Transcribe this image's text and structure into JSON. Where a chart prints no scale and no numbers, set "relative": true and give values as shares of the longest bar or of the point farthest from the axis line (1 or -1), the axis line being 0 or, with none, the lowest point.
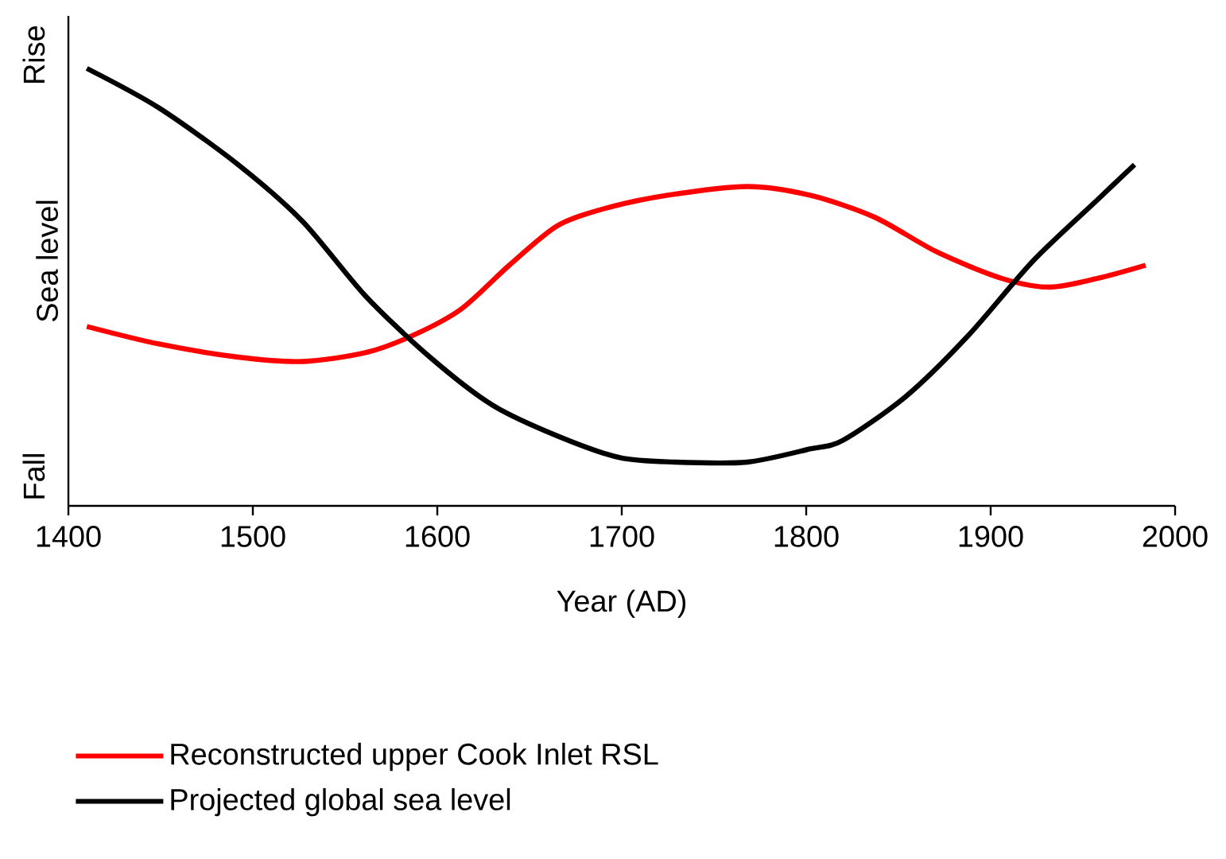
{
  "chart_data": {
    "type": "line",
    "relative": true,
    "xlabel": "Year (AD)",
    "ylabel": "Sea level",
    "annotations": [
      "Rise",
      "Fall"
    ],
    "xlim": [
      1400,
      2000
    ],
    "xticks": [
      1400,
      1500,
      1600,
      1700,
      1800,
      1900,
      2000
    ],
    "legend": "bottom",
    "grid": false,
    "marker": "none",
    "line_style": "solid",
    "series": [
      {
        "name": "Reconstructed upper Cook Inlet RSL",
        "color": "#ff0000",
        "x": [
          1410,
          1449,
          1492,
          1527,
          1561,
          1587,
          1613,
          1639,
          1665,
          1691,
          1725,
          1768,
          1802,
          1837,
          1871,
          1906,
          1932,
          1958,
          1984
        ],
        "values": [
          0.41,
          0.37,
          0.34,
          0.33,
          0.35,
          0.39,
          0.45,
          0.55,
          0.64,
          0.68,
          0.71,
          0.73,
          0.71,
          0.66,
          0.58,
          0.52,
          0.5,
          0.52,
          0.55
        ]
      },
      {
        "name": "Projected global sea level",
        "color": "#000000",
        "x": [
          1410,
          1449,
          1492,
          1527,
          1561,
          1596,
          1630,
          1665,
          1699,
          1729,
          1768,
          1802,
          1820,
          1854,
          1888,
          1923,
          1958,
          1978
        ],
        "values": [
          1,
          0.91,
          0.78,
          0.65,
          0.48,
          0.34,
          0.23,
          0.16,
          0.11,
          0.1,
          0.1,
          0.13,
          0.15,
          0.25,
          0.39,
          0.56,
          0.7,
          0.78
        ]
      }
    ]
  }
}
